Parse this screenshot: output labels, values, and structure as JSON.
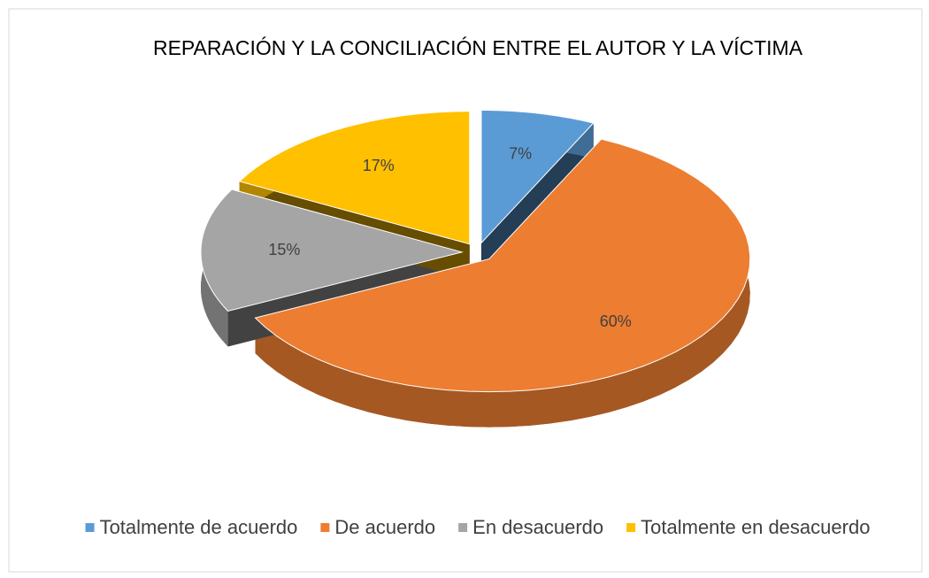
{
  "chart_data": {
    "type": "pie",
    "title": "REPARACIÓN Y LA CONCILIACIÓN ENTRE EL AUTOR Y LA VÍCTIMA",
    "categories": [
      "Totalmente de acuerdo",
      "De acuerdo",
      "En desacuerdo",
      "Totalmente en desacuerdo"
    ],
    "values": [
      7,
      60,
      15,
      17
    ],
    "value_labels": [
      "7%",
      "60%",
      "15%",
      "17%"
    ],
    "colors": [
      "#5b9bd5",
      "#ed7d31",
      "#a5a5a5",
      "#ffc000"
    ],
    "legend": "bottom"
  }
}
